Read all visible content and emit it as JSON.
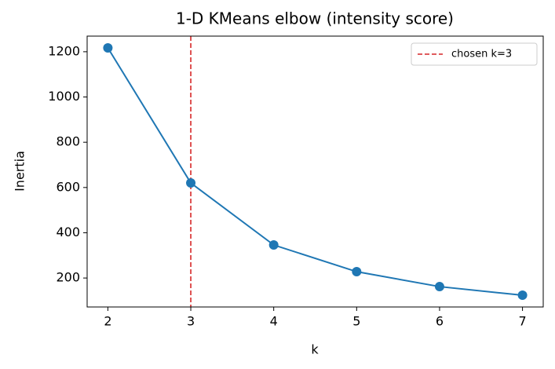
{
  "chart_data": {
    "type": "line",
    "title": "1-D KMeans elbow (intensity score)",
    "x_label": "k",
    "y_label": "Inertia",
    "x": [
      2,
      3,
      4,
      5,
      6,
      7
    ],
    "series": [
      {
        "color": "#1f77b4",
        "values": [
          1217,
          620,
          346,
          228,
          162,
          124
        ]
      }
    ],
    "xlim": [
      1.75,
      7.25
    ],
    "ylim": [
      72,
      1269
    ],
    "xticks": [
      2,
      3,
      4,
      5,
      6,
      7
    ],
    "yticks": [
      200,
      400,
      600,
      800,
      1000,
      1200
    ],
    "vline": {
      "x": 3,
      "label": "chosen k=3",
      "color": "#d62728"
    },
    "legend": "upper right",
    "grid": false
  }
}
